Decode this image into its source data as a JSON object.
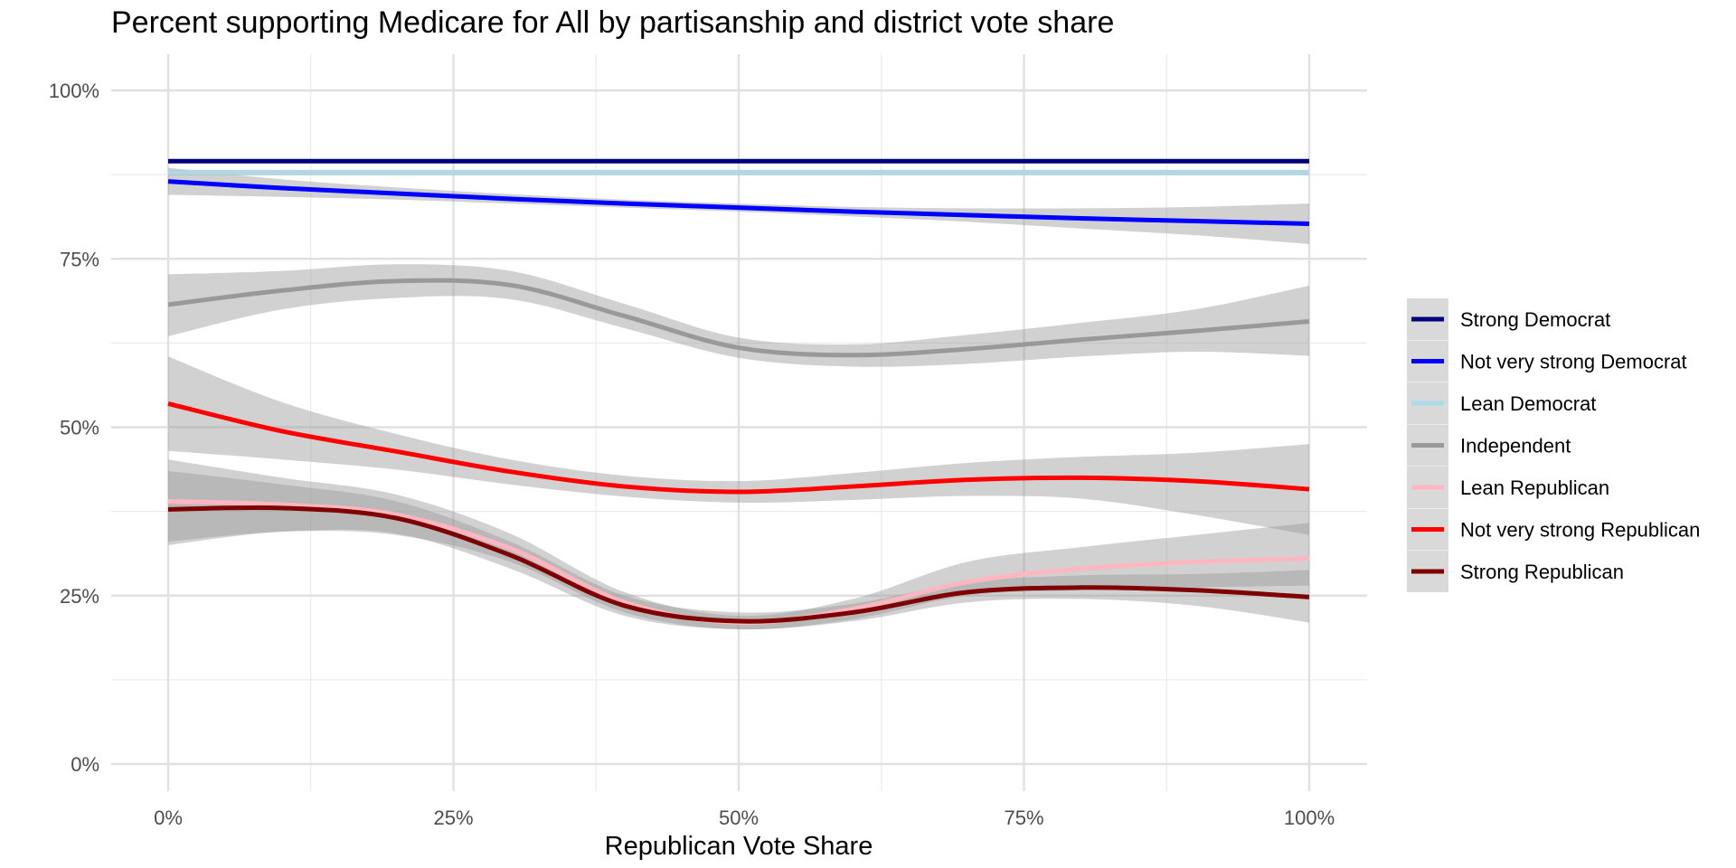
{
  "chart_data": {
    "type": "line",
    "title": "Percent supporting Medicare for All by partisanship and district vote share",
    "xlabel": "Republican Vote Share",
    "ylabel": "",
    "xlim": [
      0,
      1
    ],
    "ylim": [
      0,
      1
    ],
    "x_ticks": [
      0,
      0.25,
      0.5,
      0.75,
      1
    ],
    "x_tick_labels": [
      "0%",
      "25%",
      "50%",
      "75%",
      "100%"
    ],
    "y_ticks": [
      0,
      0.25,
      0.5,
      0.75,
      1
    ],
    "y_tick_labels": [
      "0%",
      "25%",
      "50%",
      "75%",
      "100%"
    ],
    "grid": true,
    "legend_position": "right",
    "x": [
      0,
      0.1,
      0.2,
      0.3,
      0.4,
      0.5,
      0.6,
      0.7,
      0.8,
      0.9,
      1.0
    ],
    "series": [
      {
        "name": "Strong Democrat",
        "color": "#00007f",
        "values": [
          0.895,
          0.895,
          0.895,
          0.895,
          0.895,
          0.895,
          0.895,
          0.895,
          0.895,
          0.895,
          0.895
        ],
        "lower": [
          0.893,
          0.893,
          0.893,
          0.893,
          0.893,
          0.893,
          0.893,
          0.893,
          0.893,
          0.893,
          0.893
        ],
        "upper": [
          0.897,
          0.897,
          0.897,
          0.897,
          0.897,
          0.897,
          0.897,
          0.897,
          0.897,
          0.897,
          0.897
        ]
      },
      {
        "name": "Not very strong Democrat",
        "color": "#0000ff",
        "values": [
          0.865,
          0.855,
          0.847,
          0.839,
          0.832,
          0.826,
          0.82,
          0.815,
          0.81,
          0.806,
          0.802
        ],
        "lower": [
          0.845,
          0.842,
          0.838,
          0.832,
          0.826,
          0.82,
          0.813,
          0.805,
          0.795,
          0.785,
          0.772
        ],
        "upper": [
          0.885,
          0.868,
          0.856,
          0.846,
          0.838,
          0.832,
          0.827,
          0.825,
          0.825,
          0.827,
          0.832
        ]
      },
      {
        "name": "Lean Democrat",
        "color": "#add8e6",
        "values": [
          0.878,
          0.878,
          0.878,
          0.878,
          0.878,
          0.878,
          0.878,
          0.878,
          0.878,
          0.878,
          0.878
        ],
        "lower": [
          0.874,
          0.874,
          0.874,
          0.874,
          0.874,
          0.874,
          0.874,
          0.874,
          0.874,
          0.874,
          0.874
        ],
        "upper": [
          0.882,
          0.882,
          0.882,
          0.882,
          0.882,
          0.882,
          0.882,
          0.882,
          0.882,
          0.882,
          0.882
        ]
      },
      {
        "name": "Independent",
        "color": "#999999",
        "values": [
          0.682,
          0.703,
          0.717,
          0.711,
          0.665,
          0.618,
          0.607,
          0.616,
          0.63,
          0.643,
          0.657
        ],
        "lower": [
          0.635,
          0.675,
          0.692,
          0.69,
          0.647,
          0.603,
          0.59,
          0.594,
          0.605,
          0.612,
          0.606
        ],
        "upper": [
          0.727,
          0.732,
          0.742,
          0.732,
          0.683,
          0.633,
          0.623,
          0.637,
          0.655,
          0.675,
          0.71
        ]
      },
      {
        "name": "Lean Republican",
        "color": "#ffb6c1",
        "values": [
          0.39,
          0.385,
          0.37,
          0.32,
          0.24,
          0.21,
          0.23,
          0.27,
          0.29,
          0.3,
          0.305
        ],
        "lower": [
          0.33,
          0.345,
          0.34,
          0.3,
          0.225,
          0.2,
          0.215,
          0.25,
          0.258,
          0.262,
          0.265
        ],
        "upper": [
          0.452,
          0.425,
          0.4,
          0.342,
          0.255,
          0.22,
          0.245,
          0.3,
          0.322,
          0.34,
          0.358
        ]
      },
      {
        "name": "Not very strong Republican",
        "color": "#ff0000",
        "values": [
          0.535,
          0.494,
          0.464,
          0.434,
          0.412,
          0.404,
          0.412,
          0.422,
          0.425,
          0.42,
          0.408
        ],
        "lower": [
          0.465,
          0.452,
          0.437,
          0.415,
          0.397,
          0.388,
          0.392,
          0.398,
          0.394,
          0.37,
          0.34
        ],
        "upper": [
          0.605,
          0.537,
          0.49,
          0.452,
          0.428,
          0.42,
          0.432,
          0.447,
          0.456,
          0.462,
          0.475
        ]
      },
      {
        "name": "Strong Republican",
        "color": "#7f0000",
        "values": [
          0.378,
          0.38,
          0.365,
          0.31,
          0.235,
          0.212,
          0.225,
          0.255,
          0.262,
          0.258,
          0.248
        ],
        "lower": [
          0.325,
          0.345,
          0.342,
          0.29,
          0.22,
          0.2,
          0.212,
          0.24,
          0.245,
          0.235,
          0.21
        ],
        "upper": [
          0.435,
          0.415,
          0.39,
          0.33,
          0.25,
          0.225,
          0.238,
          0.27,
          0.28,
          0.282,
          0.288
        ]
      }
    ]
  }
}
